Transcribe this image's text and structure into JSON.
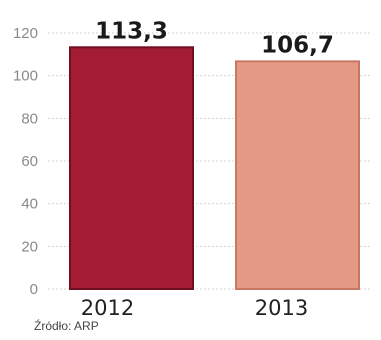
{
  "chart_data": {
    "type": "bar",
    "categories": [
      "2012",
      "2013"
    ],
    "values": [
      113.3,
      106.7
    ],
    "data_labels": [
      "113,3",
      "106,7"
    ],
    "y_ticks": [
      "0",
      "20",
      "40",
      "60",
      "80",
      "100",
      "120"
    ],
    "ylim": [
      0,
      120
    ],
    "grid": true,
    "legend": "none",
    "source": "Źródło: ARP",
    "colors": {
      "bar_2012": "#a41c34",
      "bar_2013": "#e59a86",
      "bar_2012_edge": "#6f0f22",
      "bar_2013_edge": "#c87764",
      "grid": "#c8c8c8"
    }
  }
}
